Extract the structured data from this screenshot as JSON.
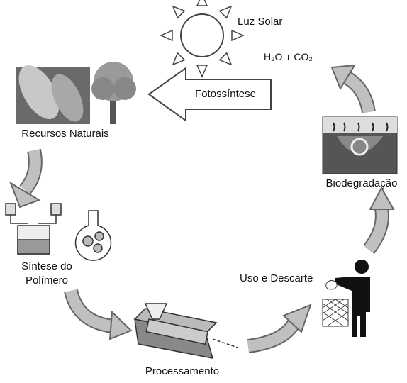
{
  "nodes": [
    {
      "label": "Luz Solar"
    },
    {
      "label": "H₂O + CO₂"
    },
    {
      "label": "Recursos Naturais"
    },
    {
      "label": "Síntese do Polímero"
    },
    {
      "label": "Processamento"
    },
    {
      "label": "Uso e Descarte"
    },
    {
      "label": "Biodegradação"
    }
  ],
  "arrows": [
    {
      "label": "Fotossíntese"
    }
  ]
}
